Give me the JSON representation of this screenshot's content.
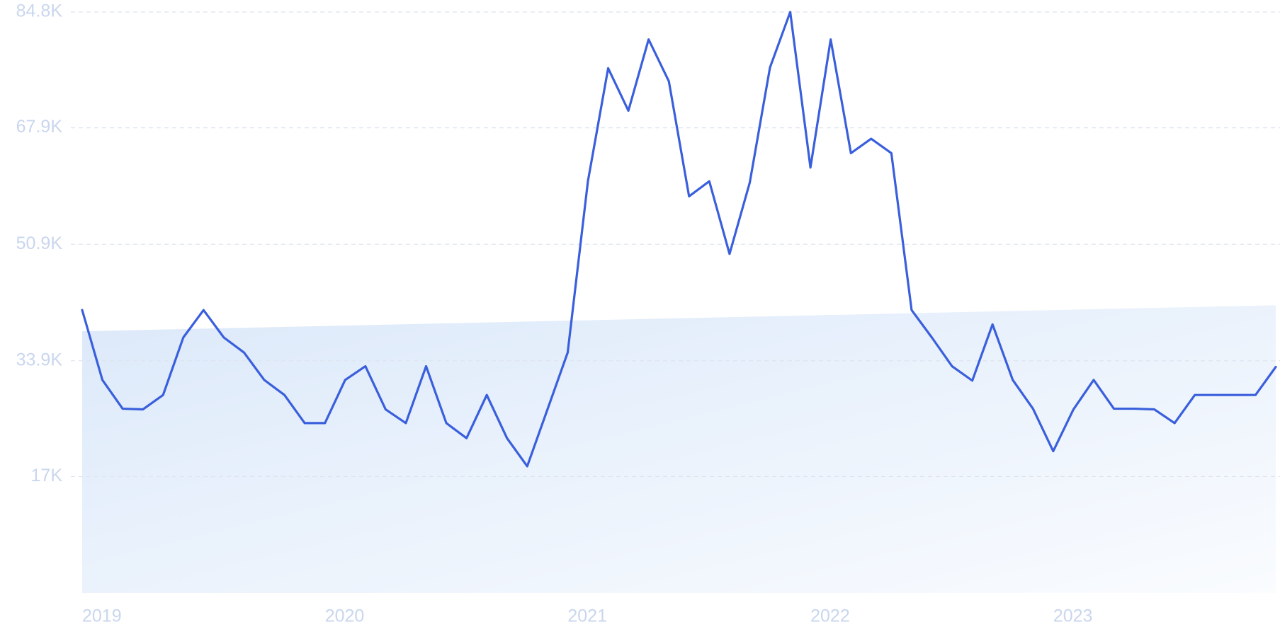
{
  "chart_data": {
    "type": "line",
    "x": [
      2019,
      2019.0833,
      2019.1667,
      2019.25,
      2019.3333,
      2019.4167,
      2019.5,
      2019.5833,
      2019.6667,
      2019.75,
      2019.8333,
      2019.9167,
      2020,
      2020.0833,
      2020.1667,
      2020.25,
      2020.3333,
      2020.4167,
      2020.5,
      2020.5833,
      2020.6667,
      2020.75,
      2020.8333,
      2020.9167,
      2021,
      2021.0833,
      2021.1667,
      2021.25,
      2021.3333,
      2021.4167,
      2021.5,
      2021.5833,
      2021.6667,
      2021.75,
      2021.8333,
      2021.9167,
      2022,
      2022.0833,
      2022.1667,
      2022.25,
      2022.3333,
      2022.4167,
      2022.5,
      2022.5833,
      2022.6667,
      2022.75,
      2022.8333,
      2022.9167,
      2023,
      2023.0833,
      2023.1667,
      2023.25,
      2023.3333,
      2023.4167,
      2023.5,
      2023.5833,
      2023.6667,
      2023.75,
      2023.8333,
      2023.9167
    ],
    "series": [
      {
        "color": "#3a5fdc",
        "values": [
          41300,
          31100,
          26900,
          26800,
          28900,
          37300,
          41300,
          37300,
          35100,
          31100,
          28900,
          24800,
          24800,
          31100,
          33100,
          26800,
          24800,
          33100,
          24800,
          22600,
          28900,
          22600,
          18500,
          26800,
          35100,
          60100,
          76600,
          70400,
          80800,
          74700,
          57900,
          60100,
          49500,
          59900,
          76700,
          84800,
          62100,
          80800,
          64200,
          66300,
          64200,
          41300,
          37300,
          33100,
          31000,
          39200,
          31100,
          26900,
          20700,
          26800,
          31100,
          26900,
          26900,
          26800,
          24800,
          28900,
          28900,
          28900,
          28900,
          33000
        ]
      }
    ],
    "trend": {
      "x": [
        2019,
        2023.9167
      ],
      "values": [
        38200,
        42000
      ],
      "color": "#dce9fa"
    },
    "xlim": [
      2019,
      2023.9167
    ],
    "xticks": [
      2019,
      2020,
      2021,
      2022,
      2023
    ],
    "ylim": [
      0,
      84800
    ],
    "yticks": [
      {
        "value": 17000,
        "label": "17K"
      },
      {
        "value": 33900,
        "label": "33.9K"
      },
      {
        "value": 50900,
        "label": "50.9K"
      },
      {
        "value": 67900,
        "label": "67.9K"
      },
      {
        "value": 84800,
        "label": "84.8K"
      }
    ],
    "grid": true
  }
}
